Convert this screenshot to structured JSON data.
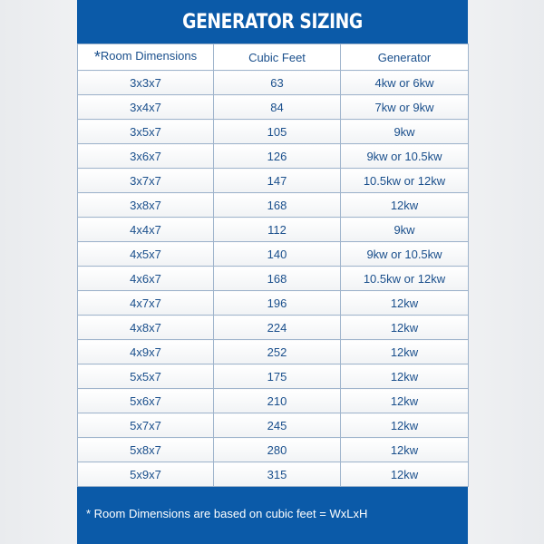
{
  "title": "GENERATOR SIZING",
  "columns": [
    "Room Dimensions",
    "Cubic Feet",
    "Generator"
  ],
  "asterisk": "*",
  "rows": [
    [
      "3x3x7",
      "63",
      "4kw or 6kw"
    ],
    [
      "3x4x7",
      "84",
      "7kw or 9kw"
    ],
    [
      "3x5x7",
      "105",
      "9kw"
    ],
    [
      "3x6x7",
      "126",
      "9kw or 10.5kw"
    ],
    [
      "3x7x7",
      "147",
      "10.5kw or 12kw"
    ],
    [
      "3x8x7",
      "168",
      "12kw"
    ],
    [
      "4x4x7",
      "112",
      "9kw"
    ],
    [
      "4x5x7",
      "140",
      "9kw or 10.5kw"
    ],
    [
      "4x6x7",
      "168",
      "10.5kw or 12kw"
    ],
    [
      "4x7x7",
      "196",
      "12kw"
    ],
    [
      "4x8x7",
      "224",
      "12kw"
    ],
    [
      "4x9x7",
      "252",
      "12kw"
    ],
    [
      "5x5x7",
      "175",
      "12kw"
    ],
    [
      "5x6x7",
      "210",
      "12kw"
    ],
    [
      "5x7x7",
      "245",
      "12kw"
    ],
    [
      "5x8x7",
      "280",
      "12kw"
    ],
    [
      "5x9x7",
      "315",
      "12kw"
    ]
  ],
  "footnote": "* Room Dimensions are based on cubic feet = WxLxH",
  "colors": {
    "brand_blue": "#0b5aa8",
    "text_blue": "#1a4f8c"
  }
}
